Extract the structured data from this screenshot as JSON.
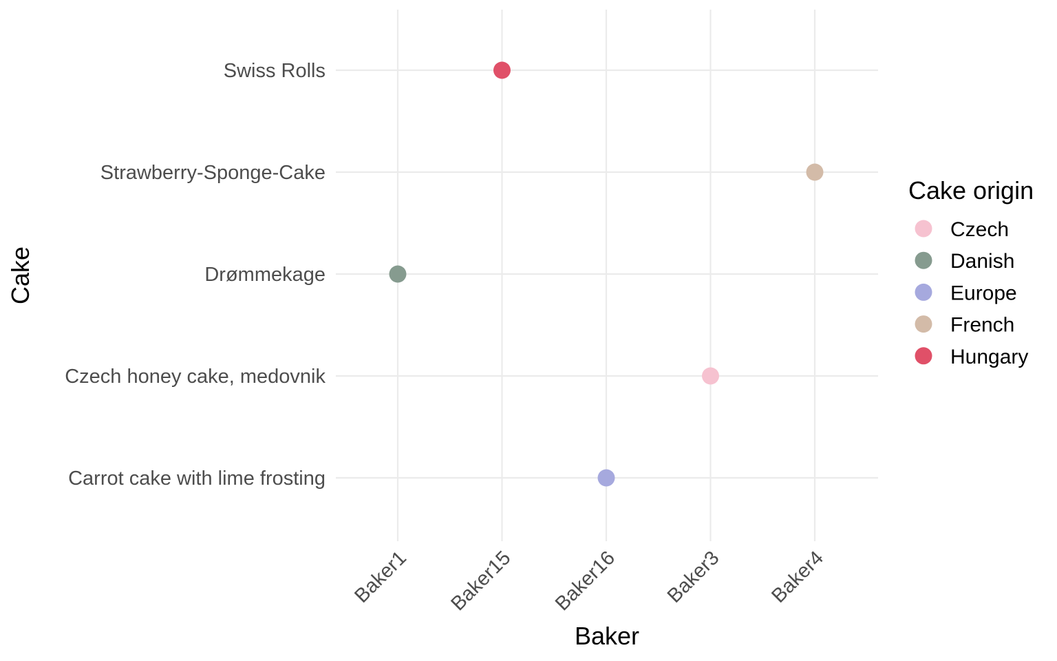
{
  "chart_data": {
    "type": "scatter",
    "title": "",
    "xlabel": "Baker",
    "ylabel": "Cake",
    "x_categories": [
      "Baker1",
      "Baker15",
      "Baker16",
      "Baker3",
      "Baker4"
    ],
    "y_categories": [
      "Carrot cake with lime frosting",
      "Czech honey cake, medovnik",
      "Drømmekage",
      "Strawberry-Sponge-Cake",
      "Swiss Rolls"
    ],
    "points": [
      {
        "x": "Baker15",
        "y": "Swiss Rolls",
        "origin": "Hungary"
      },
      {
        "x": "Baker4",
        "y": "Strawberry-Sponge-Cake",
        "origin": "French"
      },
      {
        "x": "Baker1",
        "y": "Drømmekage",
        "origin": "Danish"
      },
      {
        "x": "Baker3",
        "y": "Czech honey cake, medovnik",
        "origin": "Czech"
      },
      {
        "x": "Baker16",
        "y": "Carrot cake with lime frosting",
        "origin": "Europe"
      }
    ],
    "grid": true,
    "legend": {
      "title": "Cake origin",
      "position": "right",
      "entries": [
        {
          "name": "Czech",
          "color": "#f6c2d0"
        },
        {
          "name": "Danish",
          "color": "#869b8f"
        },
        {
          "name": "Europe",
          "color": "#a6a9de"
        },
        {
          "name": "French",
          "color": "#d3bba8"
        },
        {
          "name": "Hungary",
          "color": "#e05068"
        }
      ]
    }
  }
}
